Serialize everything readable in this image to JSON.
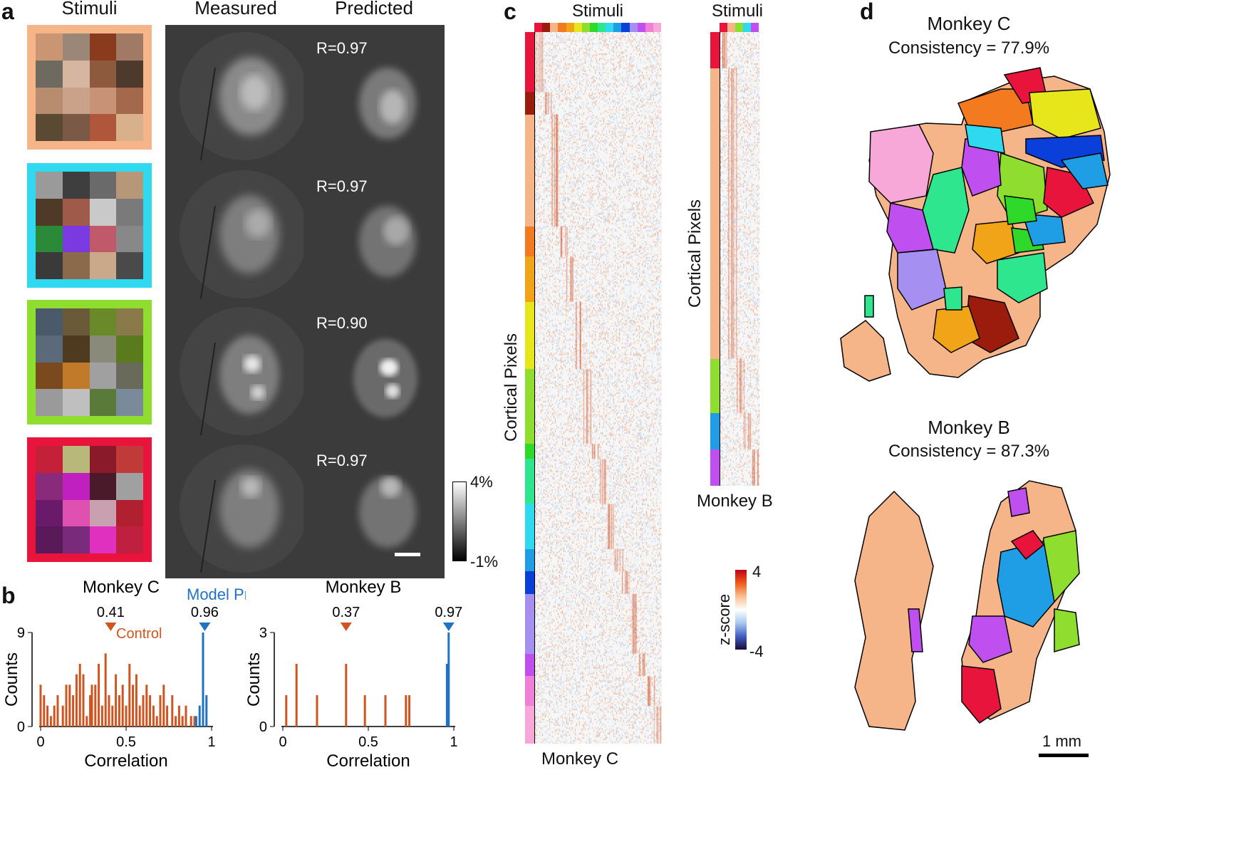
{
  "panels": {
    "a": "a",
    "b": "b",
    "c": "c",
    "d": "d"
  },
  "panel_a": {
    "headers": {
      "stimuli": "Stimuli",
      "measured": "Measured",
      "predicted": "Predicted"
    },
    "rows": [
      {
        "frame_color": "#f6b489",
        "r_text": "R=0.97"
      },
      {
        "frame_color": "#2fd9f0",
        "r_text": "R=0.97"
      },
      {
        "frame_color": "#8fdd2e",
        "r_text": "R=0.90"
      },
      {
        "frame_color": "#e8143c",
        "r_text": "R=0.97"
      }
    ],
    "colorbar": {
      "max_label": "4%",
      "min_label": "-1%"
    }
  },
  "panel_b": {
    "model_pred_label": "Model Pred.",
    "control_label": "Control",
    "control_color": "#d0541f",
    "model_color": "#1f72c4",
    "chart_data": [
      {
        "type": "bar",
        "title": "Monkey C",
        "xlabel": "Correlation",
        "ylabel": "Counts",
        "xlim": [
          0,
          1
        ],
        "ylim": [
          0,
          9
        ],
        "x_ticks": [
          "0",
          "0.5",
          "1"
        ],
        "y_ticks": [
          "0",
          "9"
        ],
        "markers": [
          {
            "name": "Control",
            "value": 0.41,
            "label": "0.41"
          },
          {
            "name": "Model Pred.",
            "value": 0.96,
            "label": "0.96"
          }
        ],
        "series": [
          {
            "name": "Control",
            "x": [
              0.0,
              0.02,
              0.04,
              0.06,
              0.08,
              0.1,
              0.13,
              0.15,
              0.17,
              0.19,
              0.21,
              0.23,
              0.25,
              0.27,
              0.29,
              0.3,
              0.32,
              0.34,
              0.36,
              0.38,
              0.4,
              0.42,
              0.44,
              0.46,
              0.48,
              0.5,
              0.52,
              0.54,
              0.56,
              0.58,
              0.6,
              0.62,
              0.64,
              0.66,
              0.68,
              0.7,
              0.72,
              0.74,
              0.77,
              0.79,
              0.81,
              0.83,
              0.85,
              0.88,
              0.9
            ],
            "values": [
              4,
              3,
              2,
              1,
              2,
              3,
              2,
              4,
              4,
              3,
              5,
              6,
              5,
              1,
              3,
              4,
              4,
              6,
              2,
              7,
              3,
              2,
              5,
              3,
              4,
              2,
              6,
              4,
              5,
              2,
              3,
              4,
              3,
              2,
              1,
              3,
              4,
              2,
              3,
              1,
              2,
              1,
              2,
              1,
              1
            ]
          },
          {
            "name": "Model Pred.",
            "x": [
              0.91,
              0.93,
              0.95,
              0.97
            ],
            "values": [
              1,
              2,
              9,
              3
            ]
          }
        ]
      },
      {
        "type": "bar",
        "title": "Monkey B",
        "xlabel": "Correlation",
        "ylabel": "Counts",
        "xlim": [
          0,
          1
        ],
        "ylim": [
          0,
          3
        ],
        "x_ticks": [
          "0",
          "0.5",
          "1"
        ],
        "y_ticks": [
          "0",
          "3"
        ],
        "markers": [
          {
            "name": "Control",
            "value": 0.37,
            "label": "0.37"
          },
          {
            "name": "Model Pred.",
            "value": 0.97,
            "label": "0.97"
          }
        ],
        "series": [
          {
            "name": "Control",
            "x": [
              0.02,
              0.08,
              0.2,
              0.37,
              0.48,
              0.6,
              0.72,
              0.74
            ],
            "values": [
              1,
              2,
              1,
              2,
              1,
              1,
              1,
              1
            ]
          },
          {
            "name": "Model Pred.",
            "x": [
              0.96,
              0.97
            ],
            "values": [
              2,
              3
            ]
          }
        ]
      }
    ]
  },
  "panel_c": {
    "stimuli_label": "Stimuli",
    "cortical_label": "Cortical Pixels",
    "monkey_c_label": "Monkey C",
    "monkey_b_label": "Monkey B",
    "colorbar": {
      "max_label": "4",
      "min_label": "-4",
      "title": "z-score"
    },
    "category_colors": [
      "#e8143c",
      "#9b1c0c",
      "#f6b489",
      "#f47a1f",
      "#f2a418",
      "#e6e61a",
      "#8fdd2e",
      "#2fd92a",
      "#2ee68e",
      "#2fd9f0",
      "#1f9ee6",
      "#0a3fd9",
      "#a58ff0",
      "#c04ff0",
      "#f07fd9",
      "#f7a8d9"
    ]
  },
  "panel_d": {
    "monkey_c_title": "Monkey C",
    "monkey_c_consistency": "Consistency = 77.9%",
    "monkey_b_title": "Monkey B",
    "monkey_b_consistency": "Consistency = 87.3%",
    "scale_label": "1 mm"
  }
}
